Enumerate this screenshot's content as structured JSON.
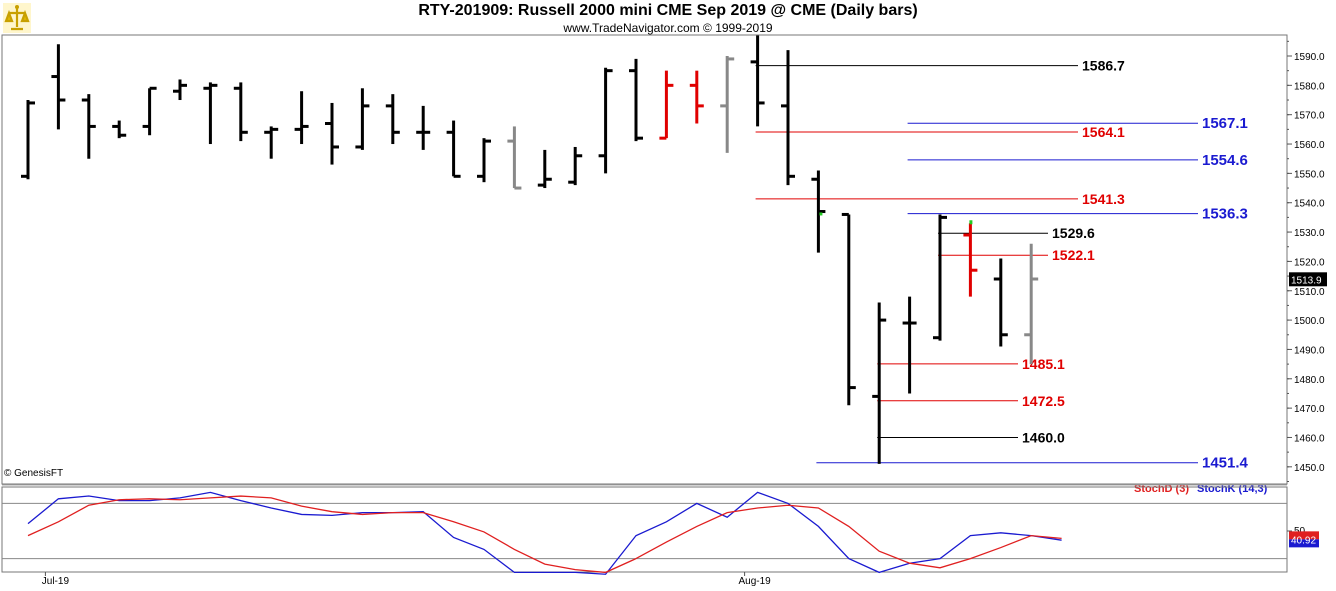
{
  "header": {
    "title": "RTY-201909:  Russell 2000 mini CME Sep 2019 @ CME  (Daily bars)",
    "subtitle": "www.TradeNavigator.com © 1999-2019"
  },
  "footer": {
    "copyright": "© GenesisFT"
  },
  "colors": {
    "up_bar": "#000000",
    "red_bar": "#e00000",
    "gray_bar": "#888888",
    "level_black": "#000000",
    "level_red": "#e00000",
    "level_blue": "#1a1ad0",
    "stochD": "#e02020",
    "stochK": "#1a1ad0"
  },
  "chart_data": [
    {
      "type": "ohlc",
      "ylim": [
        1440,
        1595
      ],
      "yticks": [
        1450.0,
        1460.0,
        1470.0,
        1480.0,
        1490.0,
        1500.0,
        1510.0,
        1520.0,
        1530.0,
        1540.0,
        1550.0,
        1560.0,
        1570.0,
        1580.0,
        1590.0
      ],
      "x_labels": [
        {
          "index": 1,
          "label": "Jul-19"
        },
        {
          "index": 24,
          "label": "Aug-19"
        }
      ],
      "last_price": "1513.9",
      "bars": [
        {
          "o": 1549,
          "h": 1575,
          "l": 1548,
          "c": 1574,
          "col": "black"
        },
        {
          "o": 1583,
          "h": 1594,
          "l": 1565,
          "c": 1575,
          "col": "black"
        },
        {
          "o": 1575,
          "h": 1577,
          "l": 1555,
          "c": 1566,
          "col": "black"
        },
        {
          "o": 1566,
          "h": 1568,
          "l": 1562,
          "c": 1563,
          "col": "black"
        },
        {
          "o": 1566,
          "h": 1579,
          "l": 1563,
          "c": 1579,
          "col": "black"
        },
        {
          "o": 1578,
          "h": 1582,
          "l": 1575,
          "c": 1580,
          "col": "black"
        },
        {
          "o": 1579,
          "h": 1581,
          "l": 1560,
          "c": 1580,
          "col": "black"
        },
        {
          "o": 1579,
          "h": 1581,
          "l": 1561,
          "c": 1564,
          "col": "black"
        },
        {
          "o": 1564,
          "h": 1566,
          "l": 1555,
          "c": 1565,
          "col": "black"
        },
        {
          "o": 1565,
          "h": 1578,
          "l": 1560,
          "c": 1566,
          "col": "black"
        },
        {
          "o": 1567,
          "h": 1574,
          "l": 1553,
          "c": 1559,
          "col": "black"
        },
        {
          "o": 1559,
          "h": 1579,
          "l": 1558,
          "c": 1573,
          "col": "black"
        },
        {
          "o": 1573,
          "h": 1577,
          "l": 1560,
          "c": 1564,
          "col": "black"
        },
        {
          "o": 1564,
          "h": 1573,
          "l": 1558,
          "c": 1564,
          "col": "black"
        },
        {
          "o": 1564,
          "h": 1568,
          "l": 1549,
          "c": 1549,
          "col": "black"
        },
        {
          "o": 1549,
          "h": 1562,
          "l": 1547,
          "c": 1561,
          "col": "black"
        },
        {
          "o": 1561,
          "h": 1566,
          "l": 1545,
          "c": 1545,
          "col": "gray"
        },
        {
          "o": 1546,
          "h": 1558,
          "l": 1545,
          "c": 1548,
          "col": "black"
        },
        {
          "o": 1547,
          "h": 1559,
          "l": 1546,
          "c": 1556,
          "col": "black"
        },
        {
          "o": 1556,
          "h": 1586,
          "l": 1550,
          "c": 1585,
          "col": "black"
        },
        {
          "o": 1585,
          "h": 1589,
          "l": 1561,
          "c": 1562,
          "col": "black"
        },
        {
          "o": 1562,
          "h": 1585,
          "l": 1562,
          "c": 1580,
          "col": "red"
        },
        {
          "o": 1580,
          "h": 1585,
          "l": 1567,
          "c": 1573,
          "col": "red"
        },
        {
          "o": 1573,
          "h": 1590,
          "l": 1557,
          "c": 1589,
          "col": "gray"
        },
        {
          "o": 1588,
          "h": 1597,
          "l": 1566,
          "c": 1574,
          "col": "black"
        },
        {
          "o": 1573,
          "h": 1592,
          "l": 1546,
          "c": 1549,
          "col": "black"
        },
        {
          "o": 1548,
          "h": 1551,
          "l": 1523,
          "c": 1537,
          "col": "black"
        },
        {
          "o": 1536,
          "h": 1536,
          "l": 1471,
          "c": 1477,
          "col": "black"
        },
        {
          "o": 1474,
          "h": 1506,
          "l": 1451,
          "c": 1500,
          "col": "black"
        },
        {
          "o": 1499,
          "h": 1508,
          "l": 1475,
          "c": 1499,
          "col": "black"
        },
        {
          "o": 1494,
          "h": 1536,
          "l": 1493,
          "c": 1535,
          "col": "black"
        },
        {
          "o": 1529,
          "h": 1533,
          "l": 1508,
          "c": 1517,
          "col": "red"
        },
        {
          "o": 1514,
          "h": 1521,
          "l": 1491,
          "c": 1495,
          "col": "black"
        },
        {
          "o": 1495,
          "h": 1526,
          "l": 1485,
          "c": 1514,
          "col": "gray"
        }
      ]
    },
    {
      "type": "level_lines",
      "levels": [
        {
          "price": 1586.7,
          "label": "1586.7",
          "color": "black",
          "start": 24,
          "label_at": "mid"
        },
        {
          "price": 1567.1,
          "label": "1567.1",
          "color": "blue",
          "start": 29,
          "label_at": "right"
        },
        {
          "price": 1564.1,
          "label": "1564.1",
          "color": "red",
          "start": 24,
          "label_at": "mid"
        },
        {
          "price": 1554.6,
          "label": "1554.6",
          "color": "blue",
          "start": 29,
          "label_at": "right"
        },
        {
          "price": 1541.3,
          "label": "1541.3",
          "color": "red",
          "start": 24,
          "label_at": "mid"
        },
        {
          "price": 1536.3,
          "label": "1536.3",
          "color": "blue",
          "start": 29,
          "label_at": "right"
        },
        {
          "price": 1529.6,
          "label": "1529.6",
          "color": "black",
          "start": 30,
          "label_at": "near"
        },
        {
          "price": 1522.1,
          "label": "1522.1",
          "color": "red",
          "start": 30,
          "label_at": "near"
        },
        {
          "price": 1485.1,
          "label": "1485.1",
          "color": "red",
          "start": 28,
          "label_at": "near"
        },
        {
          "price": 1472.5,
          "label": "1472.5",
          "color": "red",
          "start": 28,
          "label_at": "near"
        },
        {
          "price": 1460.0,
          "label": "1460.0",
          "color": "black",
          "start": 28,
          "label_at": "near"
        },
        {
          "price": 1451.4,
          "label": "1451.4",
          "color": "blue",
          "start": 26,
          "label_at": "right"
        }
      ]
    },
    {
      "type": "line",
      "indicator": "Stochastic",
      "ylim": [
        0,
        100
      ],
      "yticks": [
        50
      ],
      "reference_lines": [
        80,
        20
      ],
      "legend": [
        "StochD (3)",
        "StochK (14,3)"
      ],
      "last_value": "40.92",
      "series": [
        {
          "name": "StochK (14,3)",
          "values": [
            58,
            85,
            88,
            83,
            83,
            86,
            92,
            83,
            75,
            68,
            67,
            70,
            70,
            71,
            43,
            30,
            5,
            5,
            5,
            3,
            45,
            60,
            80,
            65,
            92,
            80,
            55,
            20,
            5,
            15,
            20,
            45,
            48,
            45,
            40
          ]
        },
        {
          "name": "StochD (3)",
          "values": [
            45,
            60,
            78,
            84,
            85,
            84,
            86,
            88,
            86,
            77,
            71,
            68,
            70,
            70,
            60,
            49,
            30,
            14,
            8,
            5,
            20,
            38,
            55,
            70,
            75,
            78,
            75,
            55,
            28,
            15,
            10,
            20,
            32,
            45,
            42
          ]
        }
      ]
    }
  ]
}
